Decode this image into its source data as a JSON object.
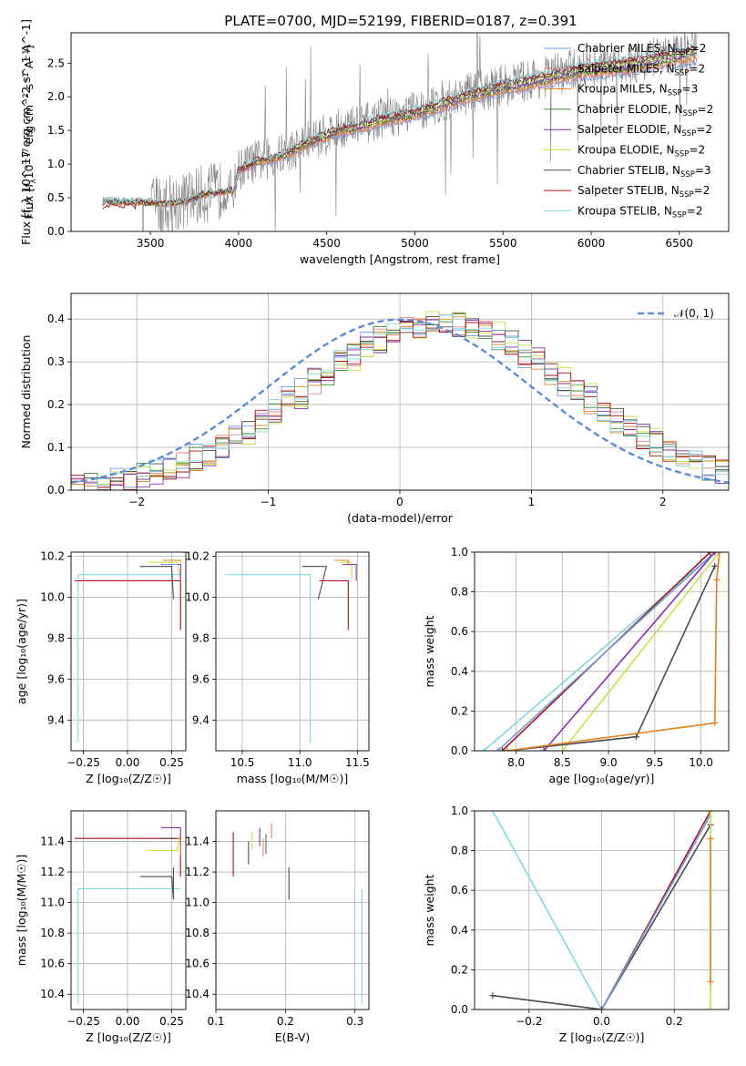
{
  "figure_title": "PLATE=0700, MJD=52199, FIBERID=0187, z=0.391",
  "colors": {
    "chabrier_miles": "#6f9fe3",
    "salpeter_miles": "#f08080",
    "kroupa_miles": "#e6801e",
    "chabrier_elodie": "#3a8a3a",
    "salpeter_elodie": "#8a2bb0",
    "kroupa_elodie": "#c8e040",
    "chabrier_stelib": "#4a4a4a",
    "salpeter_stelib": "#aa1111",
    "kroupa_stelib": "#7fd8e0",
    "data": "#808080",
    "gaussian": "#5b8bd9"
  },
  "chart_data": [
    {
      "id": "spectrum",
      "type": "line",
      "title": "PLATE=0700, MJD=52199, FIBERID=0187, z=0.391",
      "xlabel": "wavelength [Angstrom, rest frame]",
      "ylabel": "Flux [f_λ 10^-17 erg cm^-2 s^-1 A^-1]",
      "xlim": [
        3050,
        6780
      ],
      "ylim": [
        0,
        2.95
      ],
      "xticks": [
        "3500",
        "4000",
        "4500",
        "5000",
        "5500",
        "6000",
        "6500"
      ],
      "yticks": [
        "0.0",
        "0.5",
        "1.0",
        "1.5",
        "2.0",
        "2.5"
      ],
      "legend_position": "top-right",
      "legend": [
        {
          "label": "Chabrier MILES, N_SSP=2",
          "text": "Chabrier MILES, N",
          "sub": "SSP",
          "suffix": "=2",
          "color_key": "chabrier_miles"
        },
        {
          "label": "Salpeter MILES, N_SSP=2",
          "text": "Salpeter MILES, N",
          "sub": "SSP",
          "suffix": "=2",
          "color_key": "salpeter_miles"
        },
        {
          "label": "Kroupa MILES, N_SSP=3",
          "text": "Kroupa MILES, N",
          "sub": "SSP",
          "suffix": "=3",
          "color_key": "kroupa_miles"
        },
        {
          "label": "Chabrier ELODIE, N_SSP=2",
          "text": "Chabrier ELODIE, N",
          "sub": "SSP",
          "suffix": "=2",
          "color_key": "chabrier_elodie"
        },
        {
          "label": "Salpeter ELODIE, N_SSP=2",
          "text": "Salpeter ELODIE, N",
          "sub": "SSP",
          "suffix": "=2",
          "color_key": "salpeter_elodie"
        },
        {
          "label": "Kroupa ELODIE, N_SSP=2",
          "text": "Kroupa ELODIE, N",
          "sub": "SSP",
          "suffix": "=2",
          "color_key": "kroupa_elodie"
        },
        {
          "label": "Chabrier STELIB, N_SSP=3",
          "text": "Chabrier STELIB, N",
          "sub": "SSP",
          "suffix": "=3",
          "color_key": "chabrier_stelib"
        },
        {
          "label": "Salpeter STELIB, N_SSP=2",
          "text": "Salpeter STELIB, N",
          "sub": "SSP",
          "suffix": "=2",
          "color_key": "salpeter_stelib"
        },
        {
          "label": "Kroupa STELIB, N_SSP=2",
          "text": "Kroupa STELIB, N",
          "sub": "SSP",
          "suffix": "=2",
          "color_key": "kroupa_stelib"
        }
      ],
      "continuum": [
        [
          3230,
          0.45
        ],
        [
          3400,
          0.45
        ],
        [
          3600,
          0.42
        ],
        [
          3700,
          0.46
        ],
        [
          3800,
          0.56
        ],
        [
          3900,
          0.6
        ],
        [
          3970,
          0.62
        ],
        [
          4000,
          0.92
        ],
        [
          4100,
          1.05
        ],
        [
          4200,
          1.1
        ],
        [
          4300,
          1.2
        ],
        [
          4400,
          1.35
        ],
        [
          4500,
          1.45
        ],
        [
          4600,
          1.55
        ],
        [
          4700,
          1.58
        ],
        [
          4800,
          1.68
        ],
        [
          4900,
          1.72
        ],
        [
          5000,
          1.78
        ],
        [
          5100,
          1.86
        ],
        [
          5200,
          1.96
        ],
        [
          5300,
          2.05
        ],
        [
          5400,
          2.1
        ],
        [
          5500,
          2.18
        ],
        [
          5600,
          2.22
        ],
        [
          5700,
          2.28
        ],
        [
          5800,
          2.34
        ],
        [
          5900,
          2.4
        ],
        [
          6000,
          2.45
        ],
        [
          6100,
          2.48
        ],
        [
          6200,
          2.5
        ],
        [
          6300,
          2.55
        ],
        [
          6400,
          2.6
        ],
        [
          6500,
          2.64
        ],
        [
          6600,
          2.7
        ]
      ]
    },
    {
      "id": "residuals",
      "type": "bar",
      "xlabel": "(data-model)/error",
      "ylabel": "Normed distribution",
      "xlim": [
        -2.5,
        2.5
      ],
      "ylim": [
        0,
        0.46
      ],
      "xticks": [
        "−2",
        "−1",
        "0",
        "1",
        "2"
      ],
      "yticks": [
        "0.0",
        "0.1",
        "0.2",
        "0.3",
        "0.4"
      ],
      "legend_position": "top-right",
      "gaussian_label": "𝒩(0, 1)",
      "bin_width": 0.1
    },
    {
      "id": "z-age",
      "type": "line",
      "xlabel": "Z [log₁₀(Z/Z☉)]",
      "ylabel": "age  [log₁₀(age/yr)]",
      "xlim": [
        -0.32,
        0.33
      ],
      "ylim": [
        9.25,
        10.22
      ],
      "xticks": [
        "−0.25",
        "0.00",
        "0.25"
      ],
      "yticks": [
        "9.4",
        "9.6",
        "9.8",
        "10.0",
        "10.2"
      ]
    },
    {
      "id": "mass-age",
      "type": "line",
      "xlabel": "mass [log₁₀(M/M☉)]",
      "xlim": [
        10.27,
        11.6
      ],
      "ylim": [
        9.25,
        10.22
      ],
      "xticks": [
        "10.5",
        "11.0",
        "11.5"
      ],
      "yticks": [
        "9.4",
        "9.6",
        "9.8",
        "10.0",
        "10.2"
      ]
    },
    {
      "id": "age-weight",
      "type": "line",
      "xlabel": "age  [log₁₀(age/yr)]",
      "ylabel": "mass weight",
      "xlim": [
        7.55,
        10.3
      ],
      "ylim": [
        0,
        1
      ],
      "xticks": [
        "8.0",
        "8.5",
        "9.0",
        "9.5",
        "10.0"
      ],
      "yticks": [
        "0.0",
        "0.2",
        "0.4",
        "0.6",
        "0.8",
        "1.0"
      ]
    },
    {
      "id": "z-mass",
      "type": "line",
      "xlabel": "Z [log₁₀(Z/Z☉)]",
      "ylabel": "mass [log₁₀(M/M☉)]",
      "xlim": [
        -0.32,
        0.33
      ],
      "ylim": [
        10.3,
        11.6
      ],
      "xticks": [
        "−0.25",
        "0.00",
        "0.25"
      ],
      "yticks": [
        "10.4",
        "10.6",
        "10.8",
        "11.0",
        "11.2",
        "11.4"
      ]
    },
    {
      "id": "ebv-mass",
      "type": "line",
      "xlabel": "E(B-V)",
      "xlim": [
        0.1,
        0.32
      ],
      "ylim": [
        10.3,
        11.6
      ],
      "xticks": [
        "0.1",
        "0.2",
        "0.3"
      ],
      "yticks": [
        "10.4",
        "10.6",
        "10.8",
        "11.0",
        "11.2",
        "11.4"
      ]
    },
    {
      "id": "z-weight",
      "type": "line",
      "xlabel": "Z [log₁₀(Z/Z☉)]",
      "ylabel": "mass weight",
      "xlim": [
        -0.35,
        0.35
      ],
      "ylim": [
        0,
        1
      ],
      "xticks": [
        "−0.2",
        "0.0",
        "0.2"
      ],
      "yticks": [
        "0.0",
        "0.2",
        "0.4",
        "0.6",
        "0.8",
        "1.0"
      ]
    }
  ]
}
